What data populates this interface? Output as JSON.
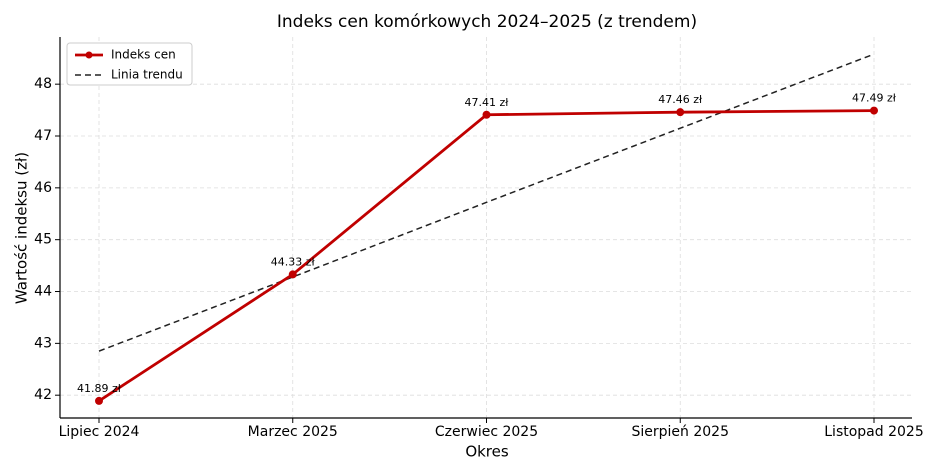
{
  "chart_data": {
    "type": "line",
    "title": "Indeks cen komórkowych 2024–2025 (z trendem)",
    "x_label": "Okres",
    "y_label": "Wartość indeksu (zł)",
    "categories": [
      "Lipiec 2024",
      "Marzec 2025",
      "Czerwiec 2025",
      "Sierpień 2025",
      "Listopad 2025"
    ],
    "series": [
      {
        "name": "Indeks cen",
        "color": "#c00000",
        "linestyle": "solid",
        "marker": true,
        "values": [
          41.89,
          44.33,
          47.41,
          47.46,
          47.49
        ],
        "value_labels": [
          "41.89 zł",
          "44.33 zł",
          "47.41 zł",
          "47.46 zł",
          "47.49 zł"
        ]
      },
      {
        "name": "Linia trendu",
        "color": "#222222",
        "linestyle": "dashed",
        "marker": false,
        "values": [
          42.85,
          44.28,
          45.72,
          47.15,
          48.58
        ]
      }
    ],
    "ylim": [
      41.56,
      48.91
    ],
    "yticks": [
      42,
      43,
      44,
      45,
      46,
      47,
      48
    ],
    "grid": true,
    "legend": "upper left"
  }
}
